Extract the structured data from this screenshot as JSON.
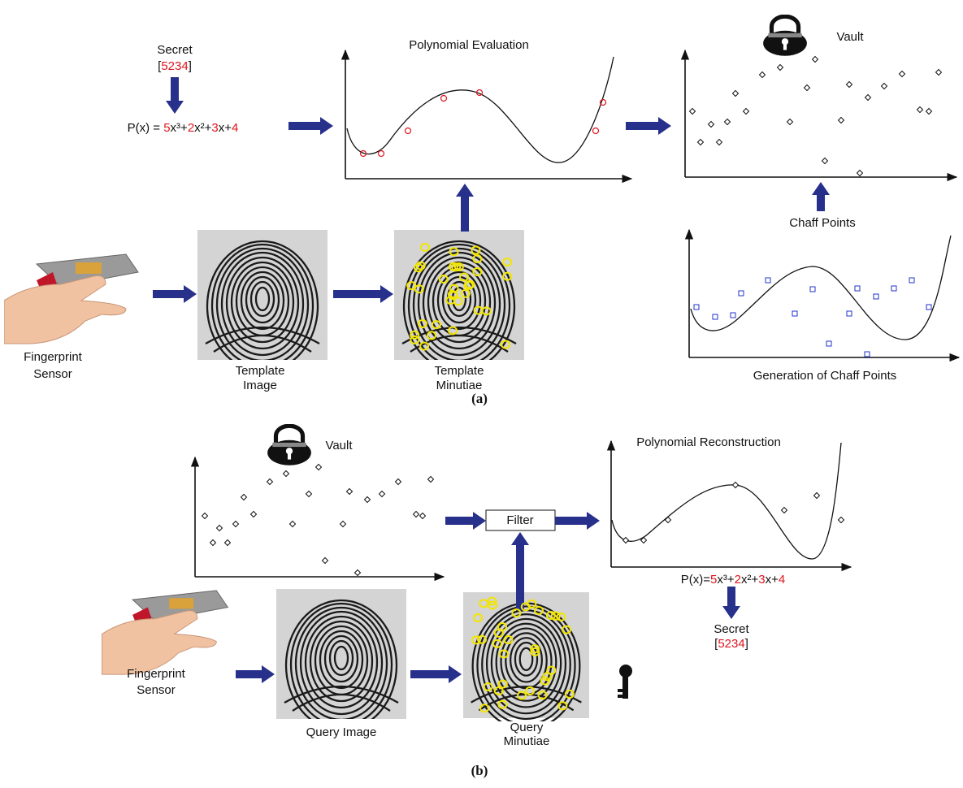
{
  "part_a": {
    "secret": {
      "label": "Secret",
      "open": "[",
      "value": "5234",
      "close": "]"
    },
    "formula": [
      "P(x) = ",
      "5",
      "x³+",
      "2",
      "x²+",
      "3",
      "x+",
      "4"
    ],
    "evaluation_title": "Polynomial Evaluation",
    "vault_label": "Vault",
    "chaff_label": "Chaff Points",
    "chaff_generation_title": "Generation of Chaff Points",
    "sensor_label": [
      "Fingerprint",
      "Sensor"
    ],
    "template_image_label": [
      "Template",
      "Image"
    ],
    "template_minutiae_label": [
      "Template",
      "Minutiae"
    ],
    "caption": "(a)"
  },
  "part_b": {
    "vault_label": "Vault",
    "reconstruction_title": "Polynomial Reconstruction",
    "filter_label": "Filter",
    "formula": [
      "P(x)=",
      "5",
      "x³+",
      "2",
      "x²+",
      "3",
      "x+",
      "4"
    ],
    "secret": {
      "label": "Secret",
      "open": "[",
      "value": "5234",
      "close": "]"
    },
    "sensor_label": [
      "Fingerprint",
      "Sensor"
    ],
    "query_image_label": "Query Image",
    "query_minutiae_label": [
      "Query",
      "Minutiae"
    ],
    "caption": "(b)"
  }
}
